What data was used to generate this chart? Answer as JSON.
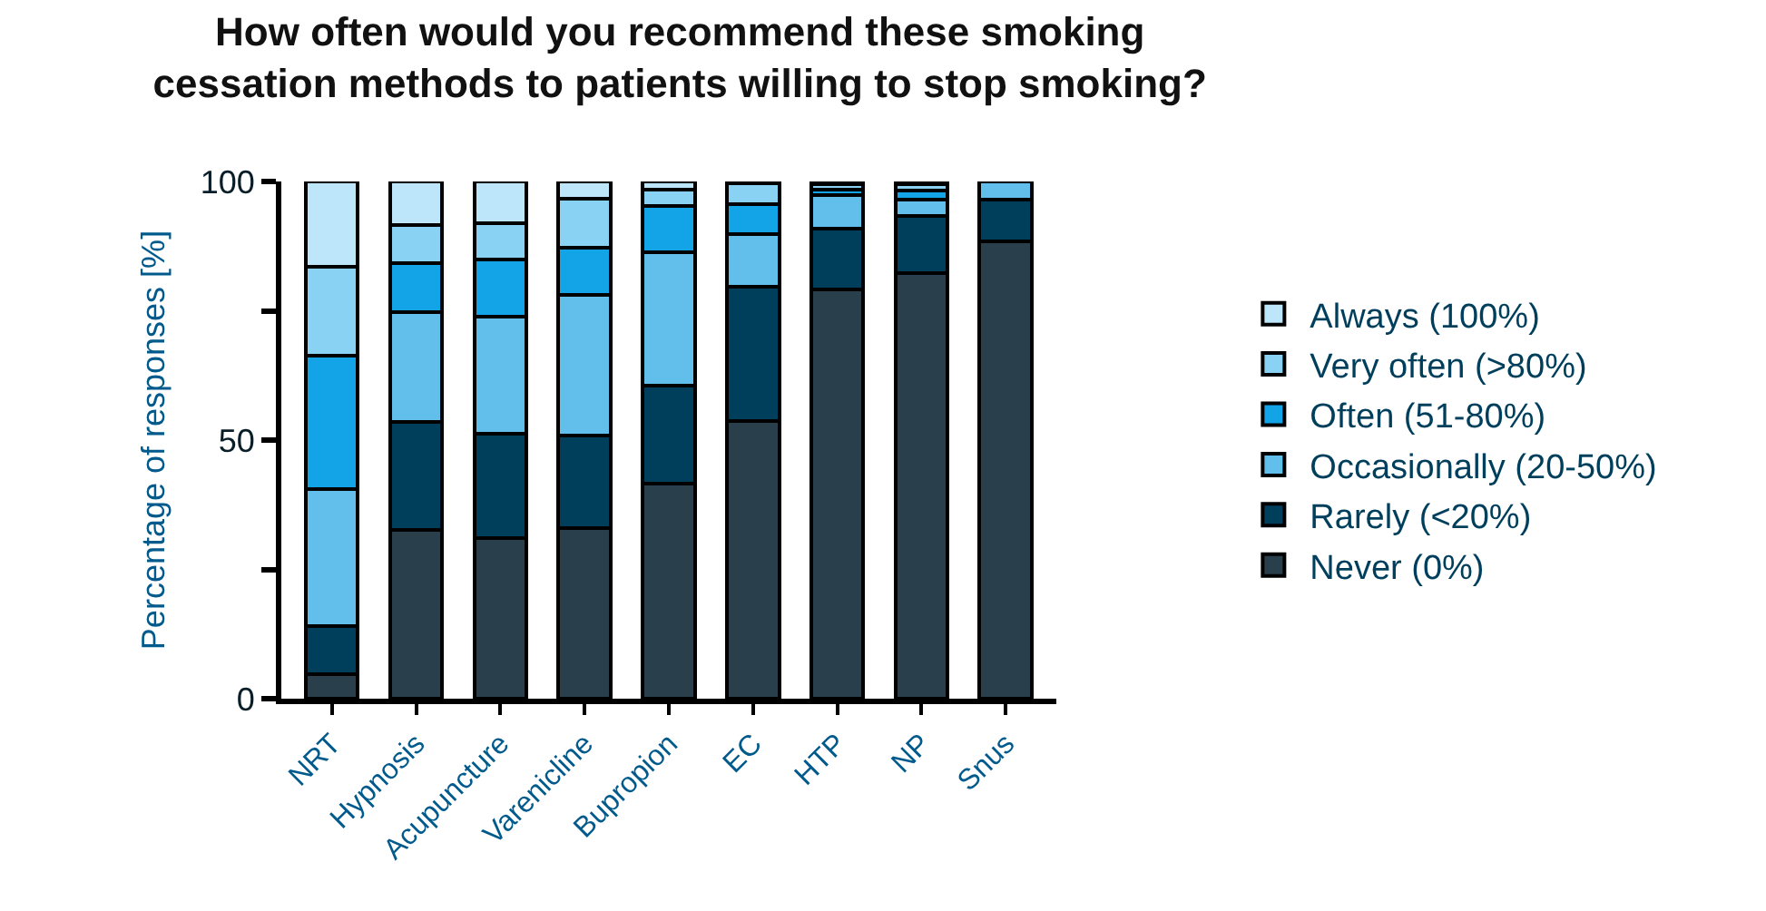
{
  "chart_data": {
    "type": "bar",
    "stacked": true,
    "title": "How often would you recommend these smoking\ncessation methods to patients willing to stop smoking?",
    "ylabel": "Percentage of responses [%]",
    "categories": [
      "NRT",
      "Hypnosis",
      "Acupuncture",
      "Varenicline",
      "Bupropion",
      "EC",
      "HTP",
      "NP",
      "Snus"
    ],
    "series": [
      {
        "name": "Never (0%)",
        "color": "#2a3f4c",
        "values": [
          4.7,
          32.6,
          31,
          32.9,
          41.5,
          53.7,
          79.1,
          82.3,
          88.4
        ]
      },
      {
        "name": "Rarely (<20%)",
        "color": "#003f5c",
        "values": [
          9.3,
          20.9,
          20.2,
          17.9,
          19,
          26,
          11.8,
          11.1,
          8.1
        ]
      },
      {
        "name": "Occasionally (20-50%)",
        "color": "#62bfec",
        "values": [
          26.5,
          21.3,
          22.6,
          27.3,
          25.9,
          10.2,
          6.4,
          3.1,
          3.5
        ]
      },
      {
        "name": "Often (51-80%)",
        "color": "#12a4e6",
        "values": [
          25.8,
          9.5,
          11.1,
          9.1,
          8.9,
          5.8,
          1.2,
          1.8,
          null
        ]
      },
      {
        "name": "Very often (>80%)",
        "color": "#8ad2f4",
        "values": [
          17.2,
          7.2,
          7.0,
          9.5,
          3.2,
          4.0,
          0.9,
          1.1,
          null
        ]
      },
      {
        "name": "Always (100%)",
        "color": "#bde6fb",
        "values": [
          16.5,
          8.5,
          8.1,
          3.3,
          1.5,
          0.3,
          0.6,
          0.6,
          null
        ]
      }
    ],
    "ylim": [
      0,
      100
    ],
    "yticks": [
      0,
      {
        "value": 25,
        "label": null
      },
      50,
      {
        "value": 75,
        "label": null
      },
      100
    ],
    "legend": "right"
  }
}
